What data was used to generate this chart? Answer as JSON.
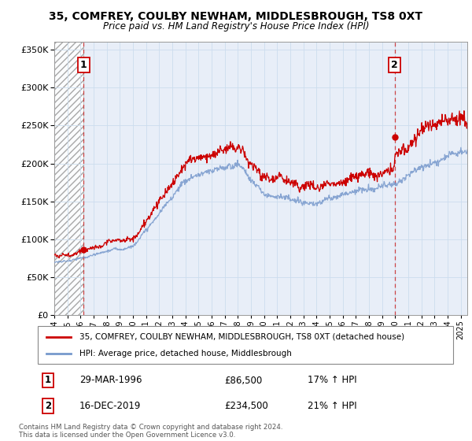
{
  "title": "35, COMFREY, COULBY NEWHAM, MIDDLESBROUGH, TS8 0XT",
  "subtitle": "Price paid vs. HM Land Registry's House Price Index (HPI)",
  "legend_line1": "35, COMFREY, COULBY NEWHAM, MIDDLESBROUGH, TS8 0XT (detached house)",
  "legend_line2": "HPI: Average price, detached house, Middlesbrough",
  "sale1_label": "1",
  "sale1_date": "29-MAR-1996",
  "sale1_price": "£86,500",
  "sale1_hpi": "17% ↑ HPI",
  "sale1_year": 1996.24,
  "sale1_value": 86500,
  "sale2_label": "2",
  "sale2_date": "16-DEC-2019",
  "sale2_price": "£234,500",
  "sale2_hpi": "21% ↑ HPI",
  "sale2_year": 2019.96,
  "sale2_value": 234500,
  "ylim": [
    0,
    360000
  ],
  "xlim_start": 1994.0,
  "xlim_end": 2025.5,
  "ylabel_ticks": [
    0,
    50000,
    100000,
    150000,
    200000,
    250000,
    300000,
    350000
  ],
  "ylabel_labels": [
    "£0",
    "£50K",
    "£100K",
    "£150K",
    "£200K",
    "£250K",
    "£300K",
    "£350K"
  ],
  "xticks": [
    1994,
    1995,
    1996,
    1997,
    1998,
    1999,
    2000,
    2001,
    2002,
    2003,
    2004,
    2005,
    2006,
    2007,
    2008,
    2009,
    2010,
    2011,
    2012,
    2013,
    2014,
    2015,
    2016,
    2017,
    2018,
    2019,
    2020,
    2021,
    2022,
    2023,
    2024,
    2025
  ],
  "hatch_end_year": 1996.24,
  "red_line_color": "#cc0000",
  "blue_line_color": "#7799cc",
  "hatch_color": "#cccccc",
  "grid_color": "#ccddee",
  "sale_marker_color": "#cc0000",
  "dashed_line_color": "#cc3333",
  "background_plot": "#e8eef8",
  "footnote": "Contains HM Land Registry data © Crown copyright and database right 2024.\nThis data is licensed under the Open Government Licence v3.0."
}
